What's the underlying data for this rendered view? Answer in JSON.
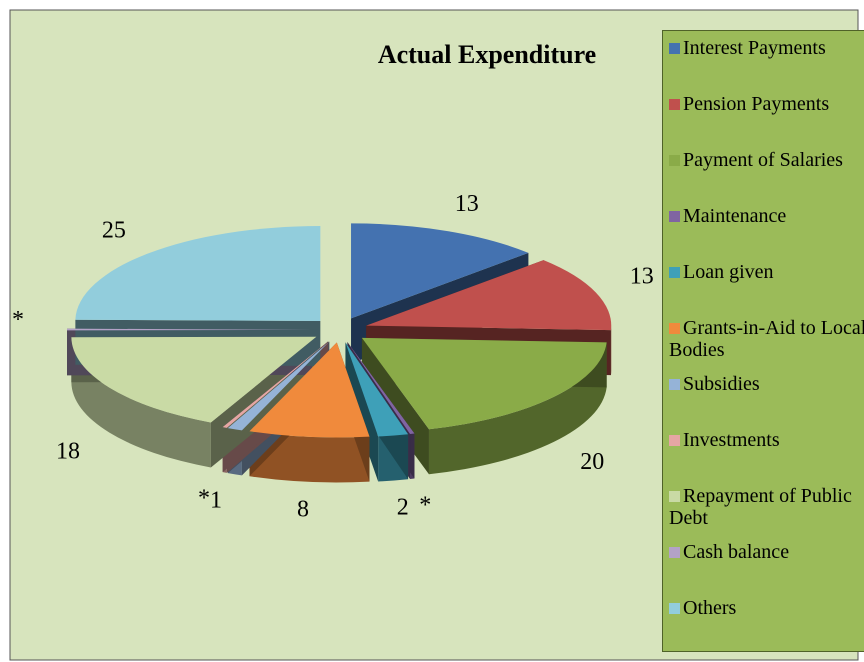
{
  "chart_data": {
    "type": "pie3d",
    "title": "Actual Expenditure",
    "categories": [
      "Interest Payments",
      "Pension Payments",
      "Payment of Salaries",
      "Maintenance",
      "Loan given",
      "Grants-in-Aid to Local Bodies",
      "Subsidies",
      "Investments",
      "Repayment of Public Debt",
      "Cash balance",
      "Others"
    ],
    "values": [
      13,
      13,
      20,
      0.3,
      2,
      8,
      1,
      0.3,
      18,
      0.3,
      25
    ],
    "value_labels": [
      "13",
      "13",
      "20",
      "*",
      "2",
      "8",
      "1",
      "*",
      "18",
      "*",
      "25"
    ],
    "colors": [
      "#4472b0",
      "#c0504d",
      "#8aab48",
      "#8064a2",
      "#3ea0b8",
      "#f08a3c",
      "#95b3d7",
      "#e6a6a4",
      "#c9daa5",
      "#b3a2c7",
      "#92cddc"
    ],
    "legend": "right"
  }
}
